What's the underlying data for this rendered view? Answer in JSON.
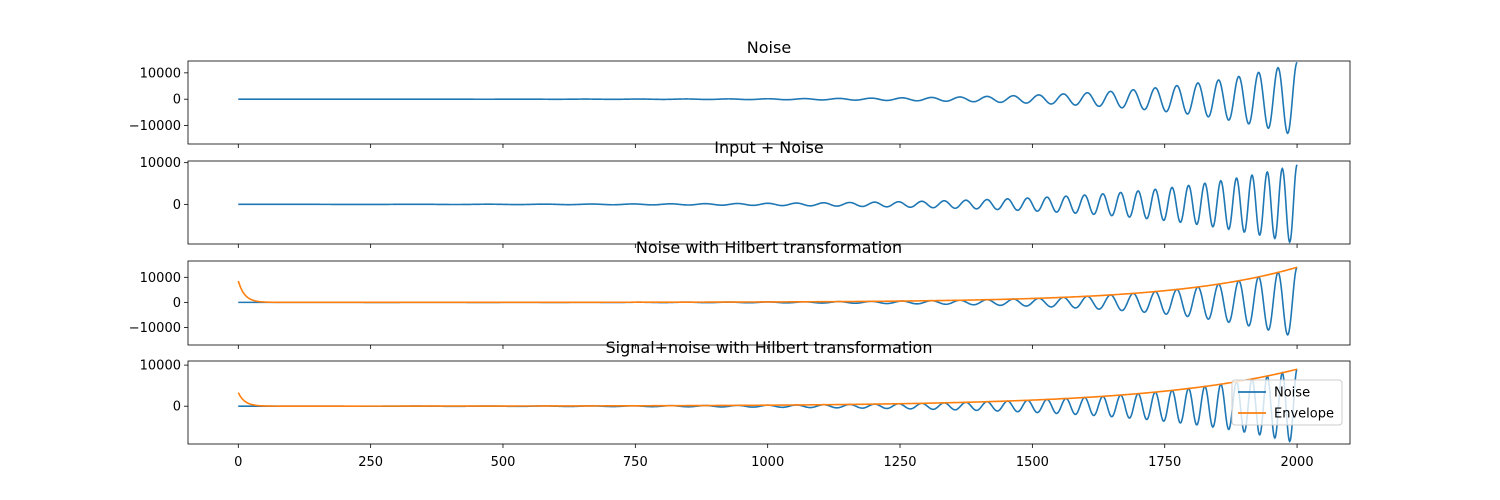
{
  "figure": {
    "background": "#ffffff"
  },
  "chart_data": [
    {
      "type": "line",
      "title": "Noise",
      "xlim": [
        -95,
        2100
      ],
      "ylim": [
        -17000,
        14500
      ],
      "yticks": [
        {
          "value": 10000,
          "label": "10000"
        },
        {
          "value": 0,
          "label": "0"
        },
        {
          "value": -10000,
          "label": "−10000"
        }
      ],
      "series": [
        {
          "color": "#1f77b4",
          "kind": "chirp",
          "amplitude_end": 14000,
          "growth": 0.0044,
          "cycles": 28,
          "phase": 0.0
        }
      ]
    },
    {
      "type": "line",
      "title": "Input + Noise",
      "xlim": [
        -95,
        2100
      ],
      "ylim": [
        -9500,
        10400
      ],
      "yticks": [
        {
          "value": 10000,
          "label": "10000"
        },
        {
          "value": 0,
          "label": "0"
        }
      ],
      "series": [
        {
          "color": "#1f77b4",
          "kind": "chirp",
          "amplitude_end": 9500,
          "growth": 0.0036,
          "cycles": 36,
          "phase": 0.0
        }
      ]
    },
    {
      "type": "line",
      "title": "Noise with Hilbert transformation",
      "xlim": [
        -95,
        2100
      ],
      "ylim": [
        -17000,
        16500
      ],
      "yticks": [
        {
          "value": 10000,
          "label": "10000"
        },
        {
          "value": 0,
          "label": "0"
        },
        {
          "value": -10000,
          "label": "−10000"
        }
      ],
      "series": [
        {
          "color": "#1f77b4",
          "kind": "chirp",
          "amplitude_end": 14000,
          "growth": 0.0044,
          "cycles": 28,
          "phase": 0.0
        },
        {
          "color": "#ff7f0e",
          "kind": "envelope",
          "amplitude_end": 14000,
          "growth": 0.0044,
          "start_spike": 8500
        }
      ]
    },
    {
      "type": "line",
      "title": "Signal+noise with Hilbert transformation",
      "xlim": [
        -95,
        2100
      ],
      "ylim": [
        -9200,
        11000
      ],
      "yticks": [
        {
          "value": 10000,
          "label": "10000"
        },
        {
          "value": 0,
          "label": "0"
        }
      ],
      "legend": {
        "placement": "lower-right",
        "entries": [
          {
            "label": "Noise",
            "color": "#1f77b4"
          },
          {
            "label": "Envelope",
            "color": "#ff7f0e"
          }
        ]
      },
      "series": [
        {
          "name": "Noise",
          "color": "#1f77b4",
          "kind": "chirp",
          "amplitude_end": 9000,
          "growth": 0.0036,
          "cycles": 36,
          "phase": 0.0
        },
        {
          "name": "Envelope",
          "color": "#ff7f0e",
          "kind": "envelope",
          "amplitude_end": 9000,
          "growth": 0.0036,
          "start_spike": 3300
        }
      ]
    }
  ],
  "x_axis": {
    "ticks": [
      {
        "value": 0,
        "label": "0"
      },
      {
        "value": 250,
        "label": "250"
      },
      {
        "value": 500,
        "label": "500"
      },
      {
        "value": 750,
        "label": "750"
      },
      {
        "value": 1000,
        "label": "1000"
      },
      {
        "value": 1250,
        "label": "1250"
      },
      {
        "value": 1500,
        "label": "1500"
      },
      {
        "value": 1750,
        "label": "1750"
      },
      {
        "value": 2000,
        "label": "2000"
      }
    ]
  }
}
